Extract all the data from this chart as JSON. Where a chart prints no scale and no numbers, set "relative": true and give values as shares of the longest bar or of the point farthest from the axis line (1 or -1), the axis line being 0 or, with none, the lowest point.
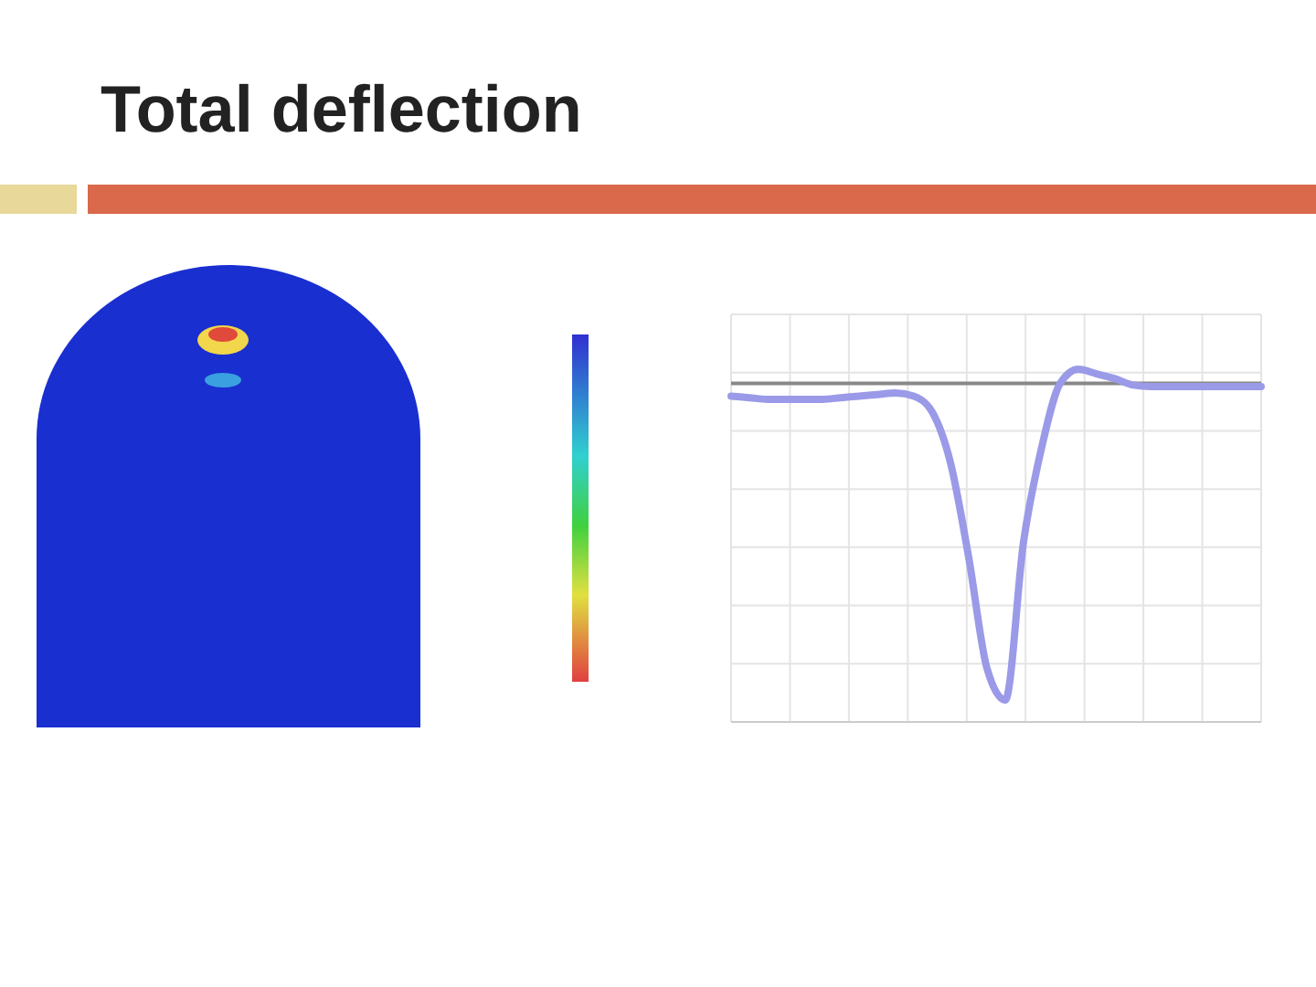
{
  "chart_data": {
    "type": "line",
    "title": "Total deflection",
    "relative": true,
    "grid": true,
    "categories": [
      null,
      null,
      null,
      null,
      null,
      null,
      null,
      null,
      null,
      null,
      null,
      null,
      null,
      null,
      null,
      null,
      null,
      null,
      null,
      null,
      null,
      null,
      null,
      null,
      null,
      null,
      null,
      null,
      null,
      null
    ],
    "series": [
      {
        "color": "#9a9ae8",
        "values": [
          -0.04,
          -0.045,
          -0.05,
          -0.05,
          -0.05,
          -0.05,
          -0.045,
          -0.04,
          -0.035,
          -0.03,
          -0.04,
          -0.09,
          -0.25,
          -0.55,
          -0.9,
          -1,
          -0.5,
          -0.2,
          0.0,
          0.045,
          0.03,
          0.015,
          -0.005,
          -0.01,
          -0.01,
          -0.01,
          -0.01,
          -0.01,
          -0.01,
          -0.01
        ]
      }
    ]
  }
}
